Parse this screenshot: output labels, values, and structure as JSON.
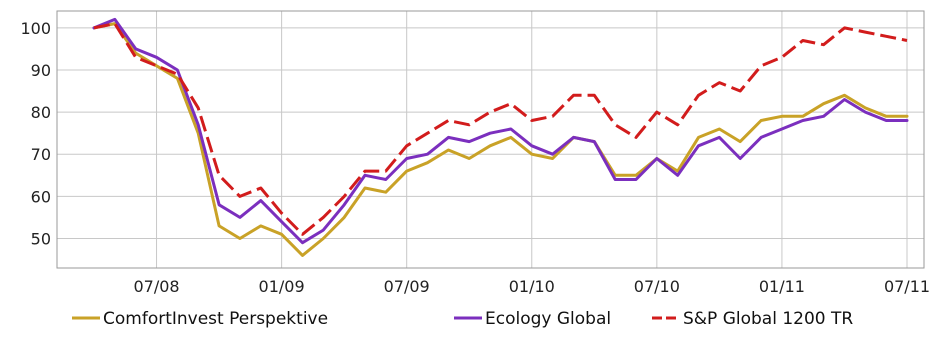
{
  "chart_data": {
    "type": "line",
    "title": "",
    "xlabel": "",
    "ylabel": "",
    "x": [
      "2008-04",
      "2008-05",
      "2008-06",
      "2008-07",
      "2008-08",
      "2008-09",
      "2008-10",
      "2008-11",
      "2008-12",
      "2009-01",
      "2009-02",
      "2009-03",
      "2009-04",
      "2009-05",
      "2009-06",
      "2009-07",
      "2009-08",
      "2009-09",
      "2009-10",
      "2009-11",
      "2009-12",
      "2010-01",
      "2010-02",
      "2010-03",
      "2010-04",
      "2010-05",
      "2010-06",
      "2010-07",
      "2010-08",
      "2010-09",
      "2010-10",
      "2010-11",
      "2010-12",
      "2011-01",
      "2011-02",
      "2011-03",
      "2011-04",
      "2011-05",
      "2011-06",
      "2011-07"
    ],
    "x_ticks": [
      {
        "date": "2008-07",
        "label": "07/08"
      },
      {
        "date": "2009-01",
        "label": "01/09"
      },
      {
        "date": "2009-07",
        "label": "07/09"
      },
      {
        "date": "2010-01",
        "label": "01/10"
      },
      {
        "date": "2010-07",
        "label": "07/10"
      },
      {
        "date": "2011-01",
        "label": "01/11"
      },
      {
        "date": "2011-07",
        "label": "07/11"
      }
    ],
    "ylim": [
      43,
      104
    ],
    "yticks": [
      50,
      60,
      70,
      80,
      90,
      100
    ],
    "grid": true,
    "legend_position": "bottom",
    "series": [
      {
        "name": "ComfortInvest Perspektive",
        "color": "#C9A227",
        "dash": "solid",
        "values": [
          100,
          101,
          94,
          91,
          88,
          75,
          53,
          50,
          53,
          51,
          46,
          50,
          55,
          62,
          61,
          66,
          68,
          71,
          69,
          72,
          74,
          70,
          69,
          74,
          73,
          65,
          65,
          69,
          66,
          74,
          76,
          73,
          78,
          79,
          79,
          82,
          84,
          81,
          79,
          79
        ]
      },
      {
        "name": "Ecology Global",
        "color": "#7B2FBE",
        "dash": "solid",
        "values": [
          100,
          102,
          95,
          93,
          90,
          77,
          58,
          55,
          59,
          54,
          49,
          52,
          58,
          65,
          64,
          69,
          70,
          74,
          73,
          75,
          76,
          72,
          70,
          74,
          73,
          64,
          64,
          69,
          65,
          72,
          74,
          69,
          74,
          76,
          78,
          79,
          83,
          80,
          78,
          78
        ]
      },
      {
        "name": "S&P Global 1200 TR",
        "color": "#D21C1C",
        "dash": "dashed",
        "values": [
          100,
          101,
          93,
          91,
          89,
          81,
          65,
          60,
          62,
          56,
          51,
          55,
          60,
          66,
          66,
          72,
          75,
          78,
          77,
          80,
          82,
          78,
          79,
          84,
          84,
          77,
          74,
          80,
          77,
          84,
          87,
          85,
          91,
          93,
          97,
          96,
          100,
          99,
          98,
          97
        ]
      }
    ]
  }
}
